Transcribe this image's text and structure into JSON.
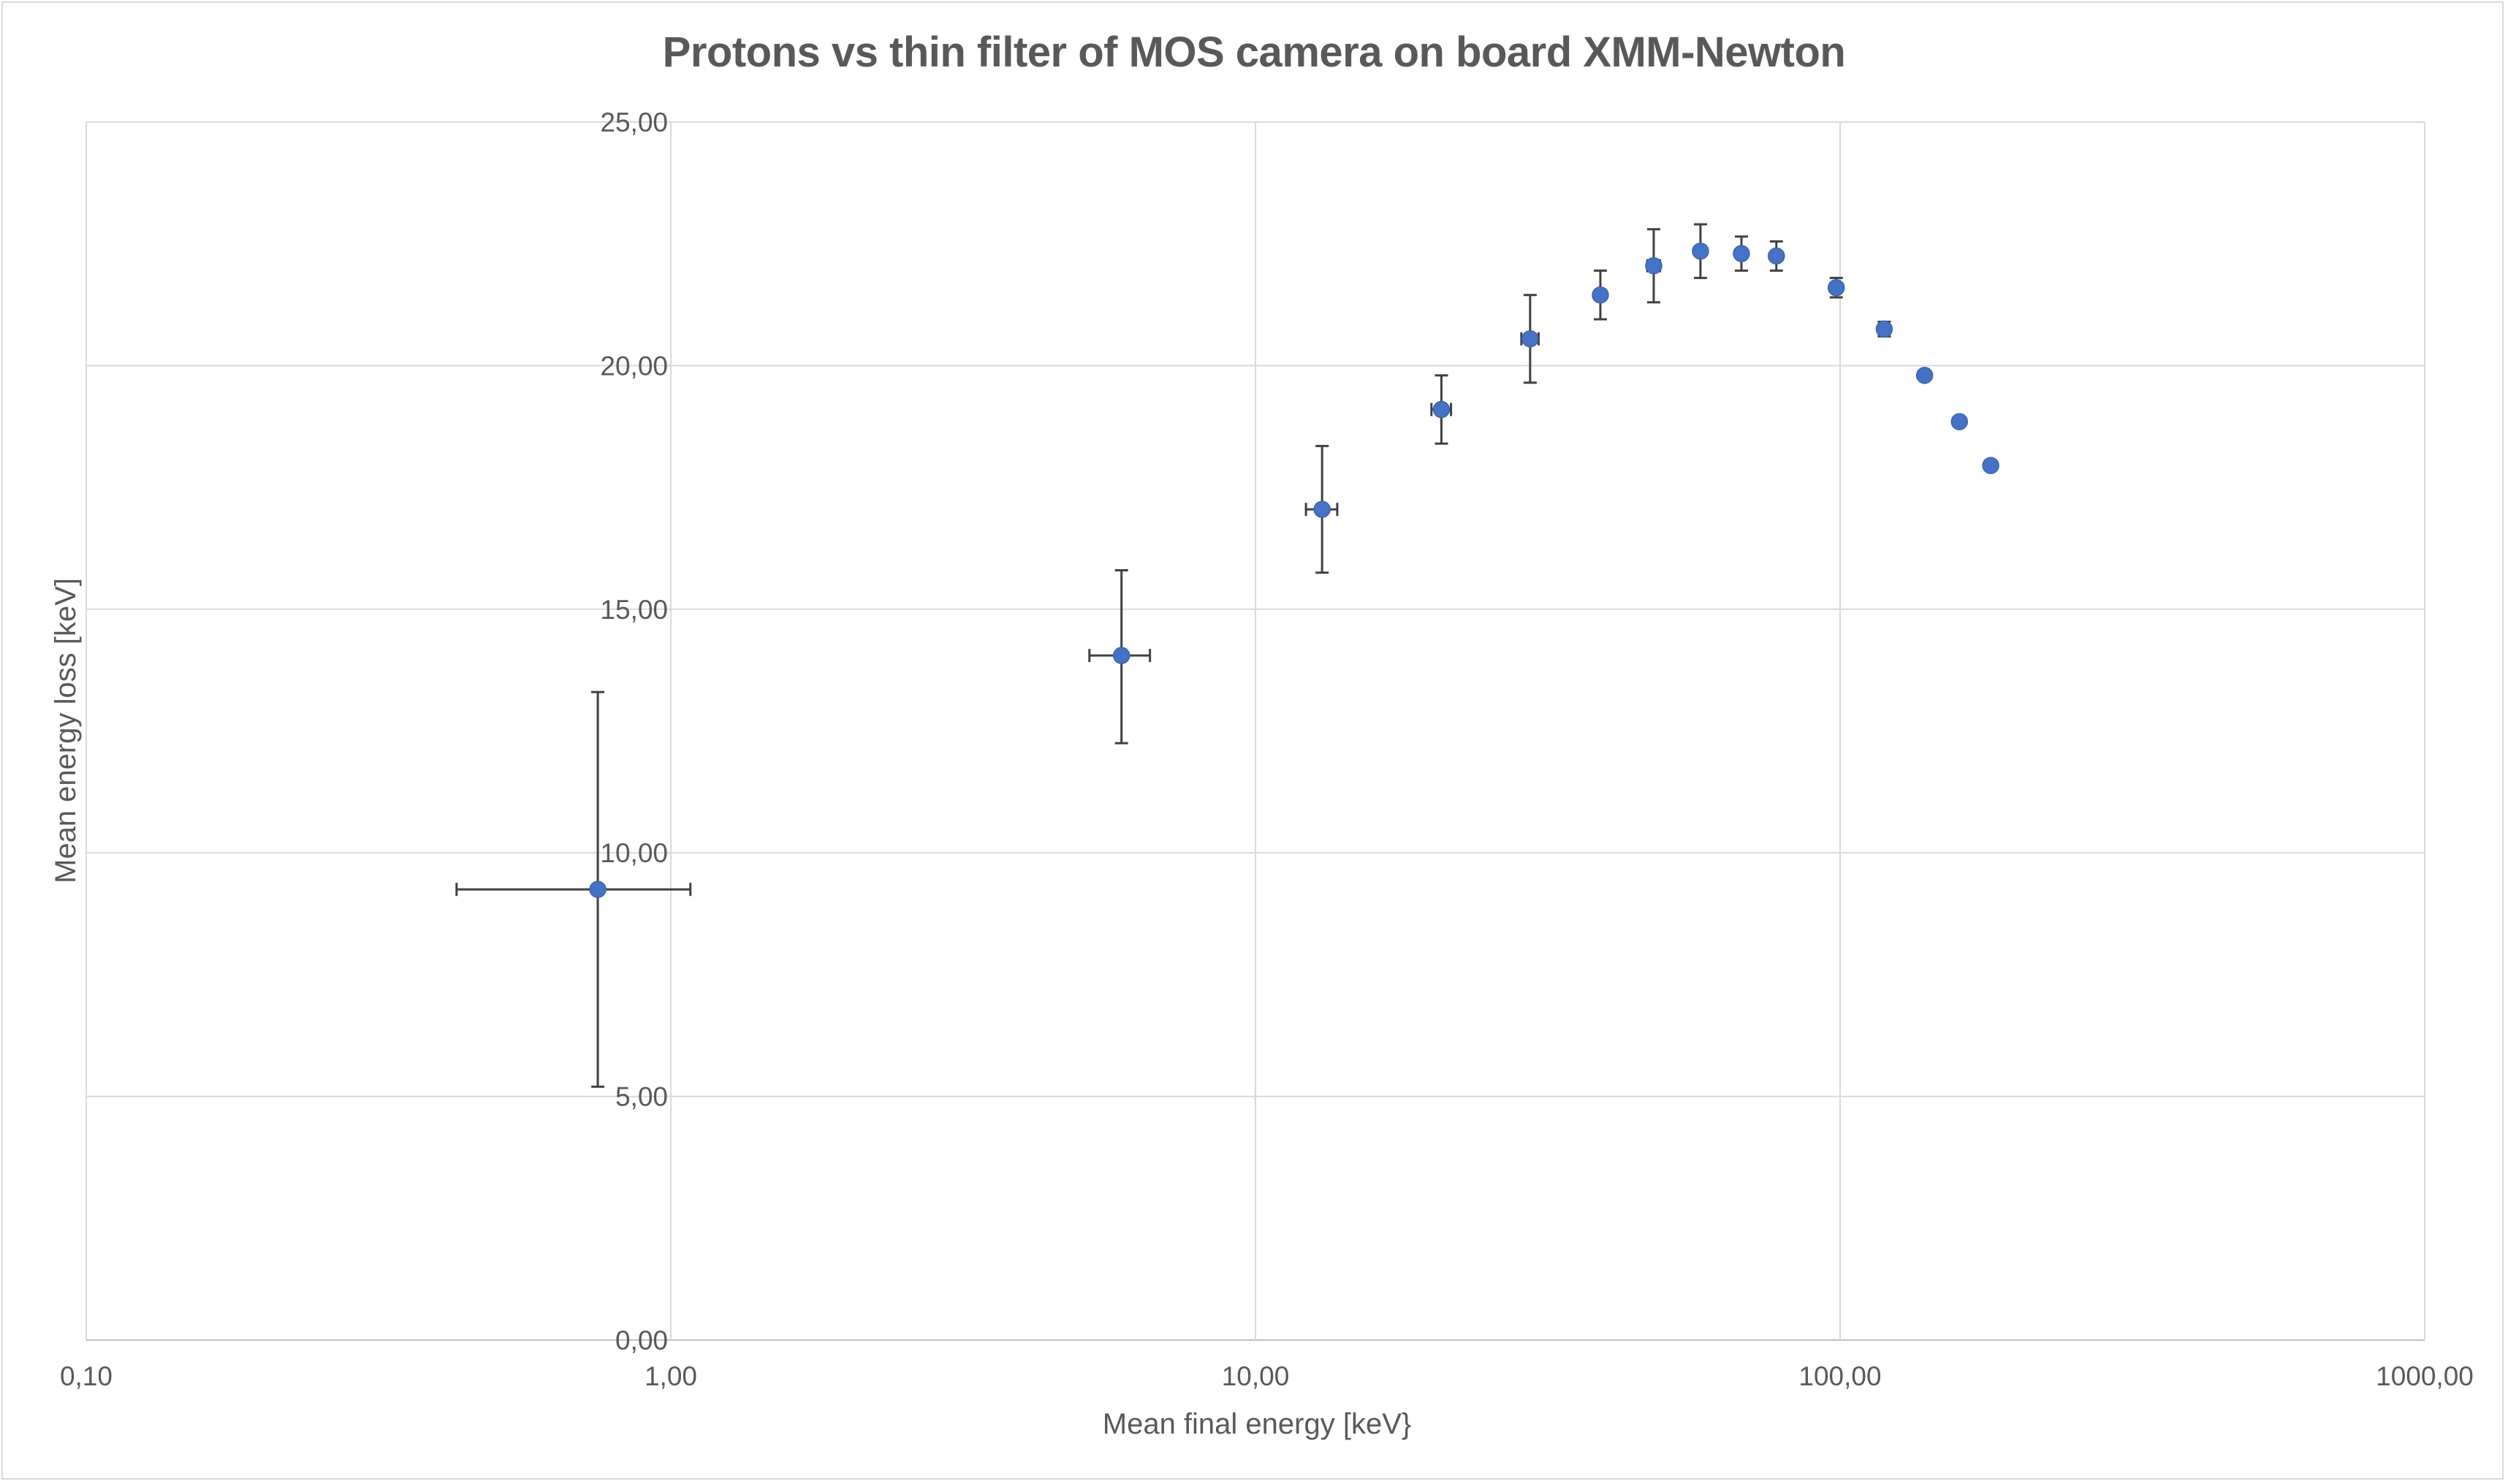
{
  "chart_data": {
    "type": "scatter",
    "title": "Protons vs thin filter of MOS camera on board XMM-Newton",
    "xlabel": "Mean final energy [keV}",
    "ylabel": "Mean energy loss [keV]",
    "x_scale": "log",
    "xlim": [
      0.1,
      1000
    ],
    "ylim": [
      0,
      25
    ],
    "x_ticks": [
      0.1,
      1,
      10,
      100,
      1000
    ],
    "x_tick_labels": [
      "0,10",
      "1,00",
      "10,00",
      "100,00",
      "1000,00"
    ],
    "y_ticks": [
      0,
      5,
      10,
      15,
      20,
      25
    ],
    "y_tick_labels": [
      "0,00",
      "5,00",
      "10,00",
      "15,00",
      "20,00",
      "25,00"
    ],
    "grid": true,
    "legend": "none",
    "marker_color": "#4472c4",
    "errorbar_color": "#404040",
    "points": [
      {
        "x": 0.75,
        "y": 9.25,
        "x_err_low": 0.32,
        "x_err_high": 0.33,
        "y_err_low": 4.05,
        "y_err_high": 4.05
      },
      {
        "x": 5.9,
        "y": 14.05,
        "x_err_low": 0.7,
        "x_err_high": 0.7,
        "y_err_low": 1.8,
        "y_err_high": 1.75
      },
      {
        "x": 13.0,
        "y": 17.05,
        "x_err_low": 0.8,
        "x_err_high": 0.8,
        "y_err_low": 1.3,
        "y_err_high": 1.3
      },
      {
        "x": 20.8,
        "y": 19.1,
        "x_err_low": 0.8,
        "x_err_high": 0.8,
        "y_err_low": 0.7,
        "y_err_high": 0.7
      },
      {
        "x": 29.5,
        "y": 20.55,
        "x_err_low": 1.0,
        "x_err_high": 1.0,
        "y_err_low": 0.9,
        "y_err_high": 0.9
      },
      {
        "x": 38.9,
        "y": 21.45,
        "x_err_low": 0.6,
        "x_err_high": 0.6,
        "y_err_low": 0.5,
        "y_err_high": 0.5
      },
      {
        "x": 48.0,
        "y": 22.05,
        "x_err_low": 1.2,
        "x_err_high": 1.2,
        "y_err_low": 0.75,
        "y_err_high": 0.75
      },
      {
        "x": 57.7,
        "y": 22.35,
        "x_err_low": 1.0,
        "x_err_high": 1.0,
        "y_err_low": 0.55,
        "y_err_high": 0.55
      },
      {
        "x": 67.8,
        "y": 22.3,
        "x_err_low": 1.0,
        "x_err_high": 1.0,
        "y_err_low": 0.35,
        "y_err_high": 0.35
      },
      {
        "x": 77.8,
        "y": 22.25,
        "x_err_low": 1.0,
        "x_err_high": 1.0,
        "y_err_low": 0.3,
        "y_err_high": 0.3
      },
      {
        "x": 98.5,
        "y": 21.6,
        "x_err_low": 1.0,
        "x_err_high": 1.0,
        "y_err_low": 0.2,
        "y_err_high": 0.2
      },
      {
        "x": 119.0,
        "y": 20.75,
        "x_err_low": 1.5,
        "x_err_high": 1.5,
        "y_err_low": 0.15,
        "y_err_high": 0.15
      },
      {
        "x": 139.5,
        "y": 19.8,
        "x_err_low": 0,
        "x_err_high": 0,
        "y_err_low": 0,
        "y_err_high": 0
      },
      {
        "x": 160.0,
        "y": 18.85,
        "x_err_low": 0,
        "x_err_high": 0,
        "y_err_low": 0,
        "y_err_high": 0
      },
      {
        "x": 181.0,
        "y": 17.95,
        "x_err_low": 0,
        "x_err_high": 0,
        "y_err_low": 0,
        "y_err_high": 0
      }
    ]
  }
}
